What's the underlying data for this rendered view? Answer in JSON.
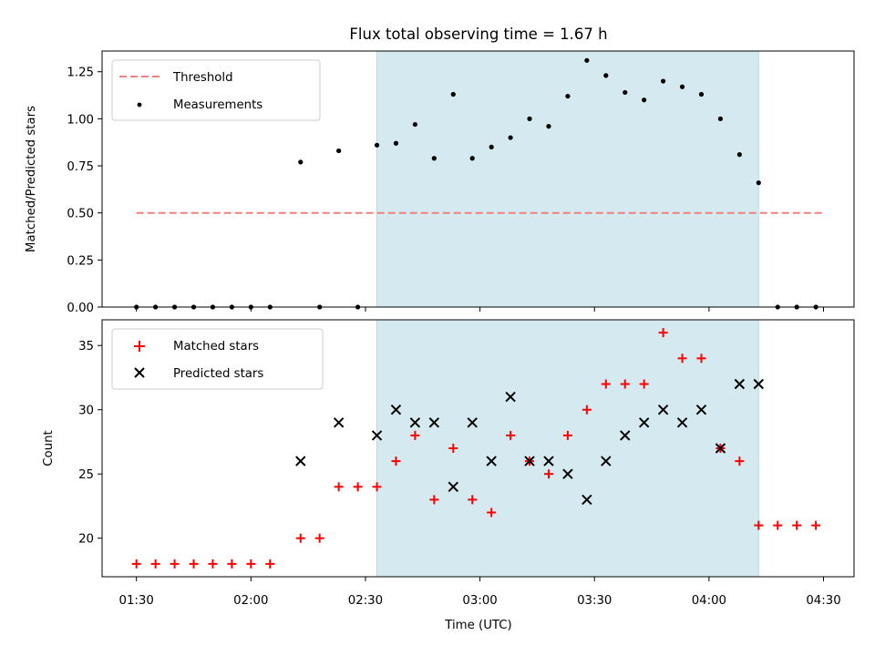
{
  "figure": {
    "title": "Flux total observing time = 1.67 h"
  },
  "chart_data": [
    {
      "type": "scatter",
      "ylabel": "Matched/Predicted stars",
      "xlabel": "",
      "ylim": [
        0.0,
        1.36
      ],
      "y_ticks": [
        "0.00",
        "0.25",
        "0.50",
        "0.75",
        "1.00",
        "1.25"
      ],
      "grid": false,
      "legend_position": "upper-left",
      "shaded_interval": {
        "x_start": "02:33",
        "x_end": "04:13"
      },
      "threshold": {
        "name": "Threshold",
        "value": 0.5,
        "x_start": "01:30",
        "x_end": "04:30",
        "color": "#f08080"
      },
      "series": [
        {
          "name": "Measurements",
          "color": "#000000",
          "points": [
            {
              "x": "01:30",
              "y": 0.0
            },
            {
              "x": "01:35",
              "y": 0.0
            },
            {
              "x": "01:40",
              "y": 0.0
            },
            {
              "x": "01:45",
              "y": 0.0
            },
            {
              "x": "01:50",
              "y": 0.0
            },
            {
              "x": "01:55",
              "y": 0.0
            },
            {
              "x": "02:00",
              "y": 0.0
            },
            {
              "x": "02:05",
              "y": 0.0
            },
            {
              "x": "02:13",
              "y": 0.77
            },
            {
              "x": "02:18",
              "y": 0.0
            },
            {
              "x": "02:23",
              "y": 0.83
            },
            {
              "x": "02:28",
              "y": 0.0
            },
            {
              "x": "02:33",
              "y": 0.86
            },
            {
              "x": "02:38",
              "y": 0.87
            },
            {
              "x": "02:43",
              "y": 0.97
            },
            {
              "x": "02:48",
              "y": 0.79
            },
            {
              "x": "02:53",
              "y": 1.13
            },
            {
              "x": "02:58",
              "y": 0.79
            },
            {
              "x": "03:03",
              "y": 0.85
            },
            {
              "x": "03:08",
              "y": 0.9
            },
            {
              "x": "03:13",
              "y": 1.0
            },
            {
              "x": "03:18",
              "y": 0.96
            },
            {
              "x": "03:23",
              "y": 1.12
            },
            {
              "x": "03:28",
              "y": 1.31
            },
            {
              "x": "03:33",
              "y": 1.23
            },
            {
              "x": "03:38",
              "y": 1.14
            },
            {
              "x": "03:43",
              "y": 1.1
            },
            {
              "x": "03:48",
              "y": 1.2
            },
            {
              "x": "03:53",
              "y": 1.17
            },
            {
              "x": "03:58",
              "y": 1.13
            },
            {
              "x": "04:03",
              "y": 1.0
            },
            {
              "x": "04:08",
              "y": 0.81
            },
            {
              "x": "04:13",
              "y": 0.66
            },
            {
              "x": "04:18",
              "y": 0.0
            },
            {
              "x": "04:23",
              "y": 0.0
            },
            {
              "x": "04:28",
              "y": 0.0
            }
          ]
        }
      ],
      "legend": [
        "Threshold",
        "Measurements"
      ]
    },
    {
      "type": "scatter",
      "ylabel": "Count",
      "xlabel": "Time (UTC)",
      "ylim": [
        17.0,
        37.0
      ],
      "y_ticks": [
        "20",
        "25",
        "30",
        "35"
      ],
      "x_ticks": [
        "01:30",
        "02:00",
        "02:30",
        "03:00",
        "03:30",
        "04:00",
        "04:30"
      ],
      "xlim": [
        "01:21",
        "04:38"
      ],
      "grid": false,
      "legend_position": "upper-left",
      "shaded_interval": {
        "x_start": "02:33",
        "x_end": "04:13"
      },
      "series": [
        {
          "name": "Matched stars",
          "marker": "plus",
          "color": "#ff0000",
          "points": [
            {
              "x": "01:30",
              "y": 18
            },
            {
              "x": "01:35",
              "y": 18
            },
            {
              "x": "01:40",
              "y": 18
            },
            {
              "x": "01:45",
              "y": 18
            },
            {
              "x": "01:50",
              "y": 18
            },
            {
              "x": "01:55",
              "y": 18
            },
            {
              "x": "02:00",
              "y": 18
            },
            {
              "x": "02:05",
              "y": 18
            },
            {
              "x": "02:13",
              "y": 20
            },
            {
              "x": "02:18",
              "y": 20
            },
            {
              "x": "02:23",
              "y": 24
            },
            {
              "x": "02:28",
              "y": 24
            },
            {
              "x": "02:33",
              "y": 24
            },
            {
              "x": "02:38",
              "y": 26
            },
            {
              "x": "02:43",
              "y": 28
            },
            {
              "x": "02:48",
              "y": 23
            },
            {
              "x": "02:53",
              "y": 27
            },
            {
              "x": "02:58",
              "y": 23
            },
            {
              "x": "03:03",
              "y": 22
            },
            {
              "x": "03:08",
              "y": 28
            },
            {
              "x": "03:13",
              "y": 26
            },
            {
              "x": "03:18",
              "y": 25
            },
            {
              "x": "03:23",
              "y": 28
            },
            {
              "x": "03:28",
              "y": 30
            },
            {
              "x": "03:33",
              "y": 32
            },
            {
              "x": "03:38",
              "y": 32
            },
            {
              "x": "03:43",
              "y": 32
            },
            {
              "x": "03:48",
              "y": 36
            },
            {
              "x": "03:53",
              "y": 34
            },
            {
              "x": "03:58",
              "y": 34
            },
            {
              "x": "04:03",
              "y": 27
            },
            {
              "x": "04:08",
              "y": 26
            },
            {
              "x": "04:13",
              "y": 21
            },
            {
              "x": "04:18",
              "y": 21
            },
            {
              "x": "04:23",
              "y": 21
            },
            {
              "x": "04:28",
              "y": 21
            }
          ]
        },
        {
          "name": "Predicted stars",
          "marker": "x",
          "color": "#000000",
          "points": [
            {
              "x": "02:13",
              "y": 26
            },
            {
              "x": "02:23",
              "y": 29
            },
            {
              "x": "02:33",
              "y": 28
            },
            {
              "x": "02:38",
              "y": 30
            },
            {
              "x": "02:43",
              "y": 29
            },
            {
              "x": "02:48",
              "y": 29
            },
            {
              "x": "02:53",
              "y": 24
            },
            {
              "x": "02:58",
              "y": 29
            },
            {
              "x": "03:03",
              "y": 26
            },
            {
              "x": "03:08",
              "y": 31
            },
            {
              "x": "03:13",
              "y": 26
            },
            {
              "x": "03:18",
              "y": 26
            },
            {
              "x": "03:23",
              "y": 25
            },
            {
              "x": "03:28",
              "y": 23
            },
            {
              "x": "03:33",
              "y": 26
            },
            {
              "x": "03:38",
              "y": 28
            },
            {
              "x": "03:43",
              "y": 29
            },
            {
              "x": "03:48",
              "y": 30
            },
            {
              "x": "03:53",
              "y": 29
            },
            {
              "x": "03:58",
              "y": 30
            },
            {
              "x": "04:03",
              "y": 27
            },
            {
              "x": "04:08",
              "y": 32
            },
            {
              "x": "04:13",
              "y": 32
            }
          ]
        }
      ],
      "legend": [
        "Matched stars",
        "Predicted stars"
      ]
    }
  ],
  "colors": {
    "shade": "#d4eaf0",
    "shade_edge": "#b7dbe4",
    "threshold": "#f08080",
    "matched": "#ff0000",
    "predicted": "#000000"
  }
}
